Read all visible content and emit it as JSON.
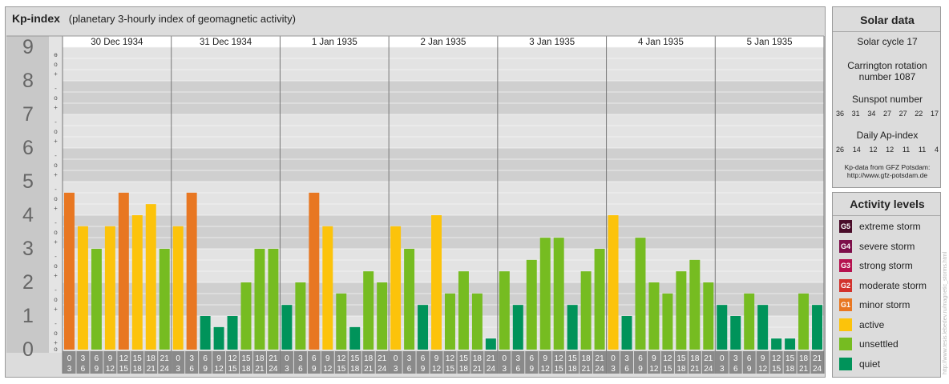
{
  "header": {
    "title": "Kp-index",
    "subtitle": "(planetary 3-hourly index of geomagnetic activity)"
  },
  "chart_data": {
    "type": "bar",
    "title": "Kp-index",
    "subtitle": "(planetary 3-hourly index of geomagnetic activity)",
    "ylim": [
      0,
      9
    ],
    "y_ticks": [
      "0",
      "1",
      "2",
      "3",
      "4",
      "5",
      "6",
      "7",
      "8",
      "9"
    ],
    "minor_tick_labels": [
      "+",
      "o",
      "-"
    ],
    "days": [
      "30 Dec 1934",
      "31 Dec 1934",
      "1 Jan 1935",
      "2 Jan 1935",
      "3 Jan 1935",
      "4 Jan 1935",
      "5 Jan 1935"
    ],
    "interval_start_hours": [
      "0",
      "3",
      "6",
      "9",
      "12",
      "15",
      "18",
      "21"
    ],
    "interval_end_hours": [
      "3",
      "6",
      "9",
      "12",
      "15",
      "18",
      "21",
      "24"
    ],
    "values": [
      [
        4.67,
        3.67,
        3.0,
        3.67,
        4.67,
        4.0,
        4.33,
        3.0
      ],
      [
        3.67,
        4.67,
        1.0,
        0.67,
        1.0,
        2.0,
        3.0,
        3.0
      ],
      [
        1.33,
        2.0,
        4.67,
        3.67,
        1.67,
        0.67,
        2.33,
        2.0
      ],
      [
        3.67,
        3.0,
        1.33,
        4.0,
        1.67,
        2.33,
        1.67,
        0.33
      ],
      [
        2.33,
        1.33,
        2.67,
        3.33,
        3.33,
        1.33,
        2.33,
        3.0
      ],
      [
        4.0,
        1.0,
        3.33,
        2.0,
        1.67,
        2.33,
        2.67,
        2.0
      ],
      [
        1.33,
        1.0,
        1.67,
        1.33,
        0.33,
        0.33,
        1.67,
        1.33
      ]
    ],
    "bar_colors": {
      "minor_storm": "#e87722",
      "active": "#fcc30b",
      "unsettled": "#76bc21",
      "quiet": "#00935a"
    },
    "grid": true,
    "legend_position": "right"
  },
  "solar": {
    "title": "Solar data",
    "cycle": "Solar cycle 17",
    "carrington_line1": "Carrington rotation",
    "carrington_line2": "number 1087",
    "sunspot_label": "Sunspot number",
    "sunspot_values": [
      "36",
      "31",
      "34",
      "27",
      "27",
      "22",
      "17"
    ],
    "ap_label": "Daily Ap-index",
    "ap_values": [
      "26",
      "14",
      "12",
      "12",
      "11",
      "11",
      "4"
    ],
    "source_line1": "Kp-data from GFZ Potsdam:",
    "source_line2": "http://www.gfz-potsdam.de"
  },
  "legend": {
    "title": "Activity levels",
    "items": [
      {
        "badge": "G5",
        "label": "extreme storm",
        "color": "#4a0d2a"
      },
      {
        "badge": "G4",
        "label": "severe storm",
        "color": "#7d0f4a"
      },
      {
        "badge": "G3",
        "label": "strong storm",
        "color": "#b5124f"
      },
      {
        "badge": "G2",
        "label": "moderate storm",
        "color": "#d2322d"
      },
      {
        "badge": "G1",
        "label": "minor storm",
        "color": "#e87722"
      },
      {
        "badge": "",
        "label": "active",
        "color": "#fcc30b"
      },
      {
        "badge": "",
        "label": "unsettled",
        "color": "#76bc21"
      },
      {
        "badge": "",
        "label": "quiet",
        "color": "#00935a"
      }
    ]
  },
  "watermark": "http://www.tesis.lebedev.ru/magnetic_storms.html"
}
